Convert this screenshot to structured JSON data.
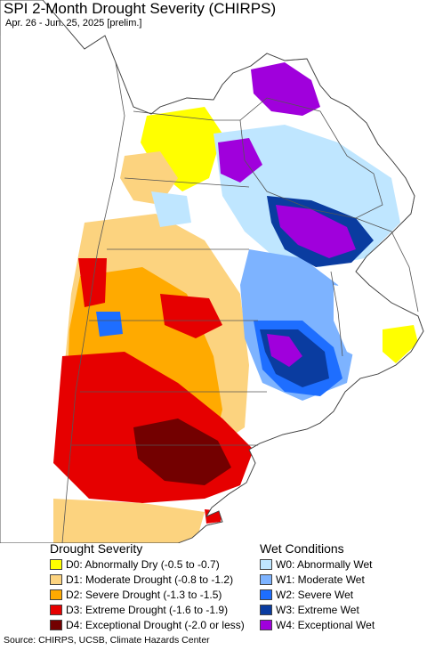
{
  "header": {
    "title": "SPI 2-Month Drought Severity (CHIRPS)",
    "subtitle": "Apr. 26 - Jun. 25, 2025 [prelim.]"
  },
  "map": {
    "region": "Southern South America",
    "colors": {
      "ocean": "#ffffff",
      "land_neutral": "#ffffff",
      "outside": "#ffffff",
      "border": "#555555"
    }
  },
  "legend": {
    "drought": {
      "heading": "Drought Severity",
      "items": [
        {
          "label": "D0: Abnormally Dry (-0.5 to -0.7)",
          "color": "#ffff00"
        },
        {
          "label": "D1: Moderate Drought (-0.8 to -1.2)",
          "color": "#fcd37f"
        },
        {
          "label": "D2: Severe Drought (-1.3 to -1.5)",
          "color": "#ffaa00"
        },
        {
          "label": "D3: Extreme Drought (-1.6 to -1.9)",
          "color": "#e60000"
        },
        {
          "label": "D4: Exceptional Drought (-2.0 or less)",
          "color": "#730000"
        }
      ]
    },
    "wet": {
      "heading": "Wet Conditions",
      "items": [
        {
          "label": "W0: Abnormally Wet",
          "color": "#bfe6ff"
        },
        {
          "label": "W1: Moderate Wet",
          "color": "#7db3ff"
        },
        {
          "label": "W2: Severe Wet",
          "color": "#1e6eff"
        },
        {
          "label": "W3: Extreme Wet",
          "color": "#0a3ca0"
        },
        {
          "label": "W4: Exceptional Wet",
          "color": "#a000dc"
        }
      ]
    }
  },
  "footer": {
    "source": "Source: CHIRPS, UCSB, Climate Hazards Center"
  }
}
